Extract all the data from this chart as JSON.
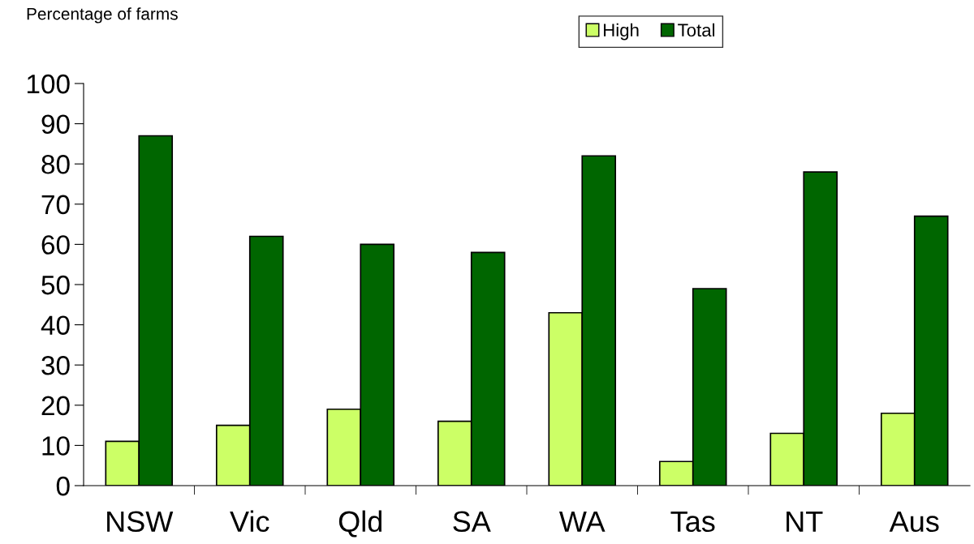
{
  "chart_data": {
    "type": "bar",
    "ylabel": "Percentage of farms",
    "categories": [
      "NSW",
      "Vic",
      "Qld",
      "SA",
      "WA",
      "Tas",
      "NT",
      "Aus"
    ],
    "series": [
      {
        "name": "High",
        "color": "#ccff66",
        "values": [
          11,
          15,
          19,
          16,
          43,
          6,
          13,
          18
        ]
      },
      {
        "name": "Total",
        "color": "#006600",
        "values": [
          87,
          62,
          60,
          58,
          82,
          49,
          78,
          67
        ]
      }
    ],
    "ylim": [
      0,
      100
    ],
    "yticks": [
      0,
      10,
      20,
      30,
      40,
      50,
      60,
      70,
      80,
      90,
      100
    ],
    "grid": false,
    "legend": "top"
  }
}
